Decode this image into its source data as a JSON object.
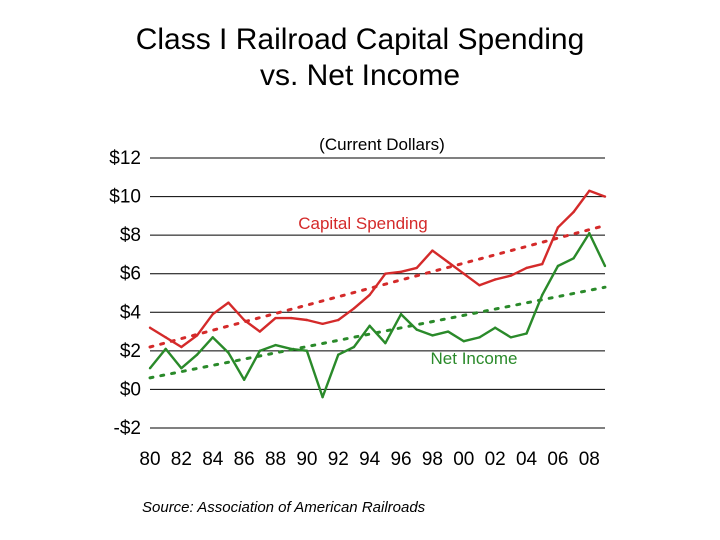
{
  "title_line1": "Class I Railroad Capital Spending",
  "title_line2": "vs. Net Income",
  "source": "Source:  Association of American Railroads",
  "colors": {
    "capital": "#d42a2a",
    "net": "#2a8a2a",
    "grid": "#000000"
  },
  "chart_data": {
    "type": "line",
    "title": "Class I Railroad Capital Spending vs. Net Income",
    "subtitle": "(Current Dollars)",
    "xlabel": "",
    "ylabel": "",
    "ylim": [
      -2,
      12
    ],
    "xlim": [
      1980,
      2009
    ],
    "grid": true,
    "y_ticks": [
      12,
      10,
      8,
      6,
      4,
      2,
      0,
      -2
    ],
    "y_tick_labels": [
      "$12",
      "$10",
      "$8",
      "$6",
      "$4",
      "$2",
      "$0",
      "-$2"
    ],
    "x_ticks": [
      1980,
      1982,
      1984,
      1986,
      1988,
      1990,
      1992,
      1994,
      1996,
      1998,
      2000,
      2002,
      2004,
      2006,
      2008
    ],
    "x_tick_labels": [
      "80",
      "82",
      "84",
      "86",
      "88",
      "90",
      "92",
      "94",
      "96",
      "98",
      "00",
      "02",
      "04",
      "06",
      "08"
    ],
    "x": [
      1980,
      1981,
      1982,
      1983,
      1984,
      1985,
      1986,
      1987,
      1988,
      1989,
      1990,
      1991,
      1992,
      1993,
      1994,
      1995,
      1996,
      1997,
      1998,
      1999,
      2000,
      2001,
      2002,
      2003,
      2004,
      2005,
      2006,
      2007,
      2008,
      2009
    ],
    "series": [
      {
        "name": "Capital Spending",
        "label": "Capital Spending",
        "values": [
          3.2,
          2.7,
          2.2,
          2.8,
          3.9,
          4.5,
          3.6,
          3.0,
          3.7,
          3.7,
          3.6,
          3.4,
          3.6,
          4.2,
          4.9,
          6.0,
          6.1,
          6.3,
          7.2,
          6.6,
          6.0,
          5.4,
          5.7,
          5.9,
          6.3,
          6.5,
          8.4,
          9.2,
          10.3,
          10.0
        ],
        "trend": [
          2.2,
          8.5
        ]
      },
      {
        "name": "Net Income",
        "label": "Net Income",
        "values": [
          1.1,
          2.1,
          1.1,
          1.8,
          2.7,
          1.9,
          0.5,
          2.0,
          2.3,
          2.1,
          2.0,
          -0.4,
          1.8,
          2.2,
          3.3,
          2.4,
          3.9,
          3.1,
          2.8,
          3.0,
          2.5,
          2.7,
          3.2,
          2.7,
          2.9,
          4.9,
          6.4,
          6.8,
          8.1,
          6.4
        ],
        "trend": [
          0.6,
          5.3
        ]
      }
    ]
  }
}
